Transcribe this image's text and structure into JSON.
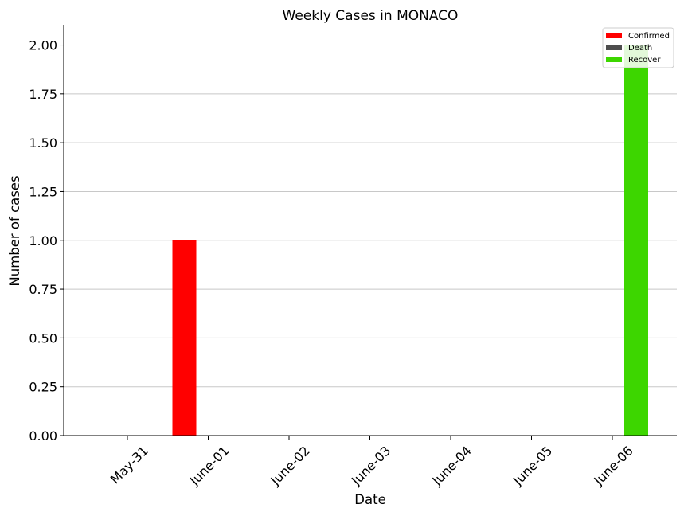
{
  "chart_data": {
    "type": "bar",
    "title": "Weekly Cases in MONACO",
    "xlabel": "Date",
    "ylabel": "Number of cases",
    "categories": [
      "May-31",
      "June-01",
      "June-02",
      "June-03",
      "June-04",
      "June-05",
      "June-06"
    ],
    "series": [
      {
        "name": "Confirmed",
        "color": "#ff0000",
        "values": [
          0,
          1,
          0,
          0,
          0,
          0,
          0
        ]
      },
      {
        "name": "Death",
        "color": "#4d4d4d",
        "values": [
          0,
          0,
          0,
          0,
          0,
          0,
          0
        ]
      },
      {
        "name": "Recover",
        "color": "#3dd600",
        "values": [
          0,
          0,
          0,
          0,
          0,
          0,
          2
        ]
      }
    ],
    "ylim": [
      0,
      2.1
    ],
    "yticks": [
      "0.00",
      "0.25",
      "0.50",
      "0.75",
      "1.00",
      "1.25",
      "1.50",
      "1.75",
      "2.00"
    ],
    "grid": "horizontal",
    "legend_position": "top-right"
  }
}
